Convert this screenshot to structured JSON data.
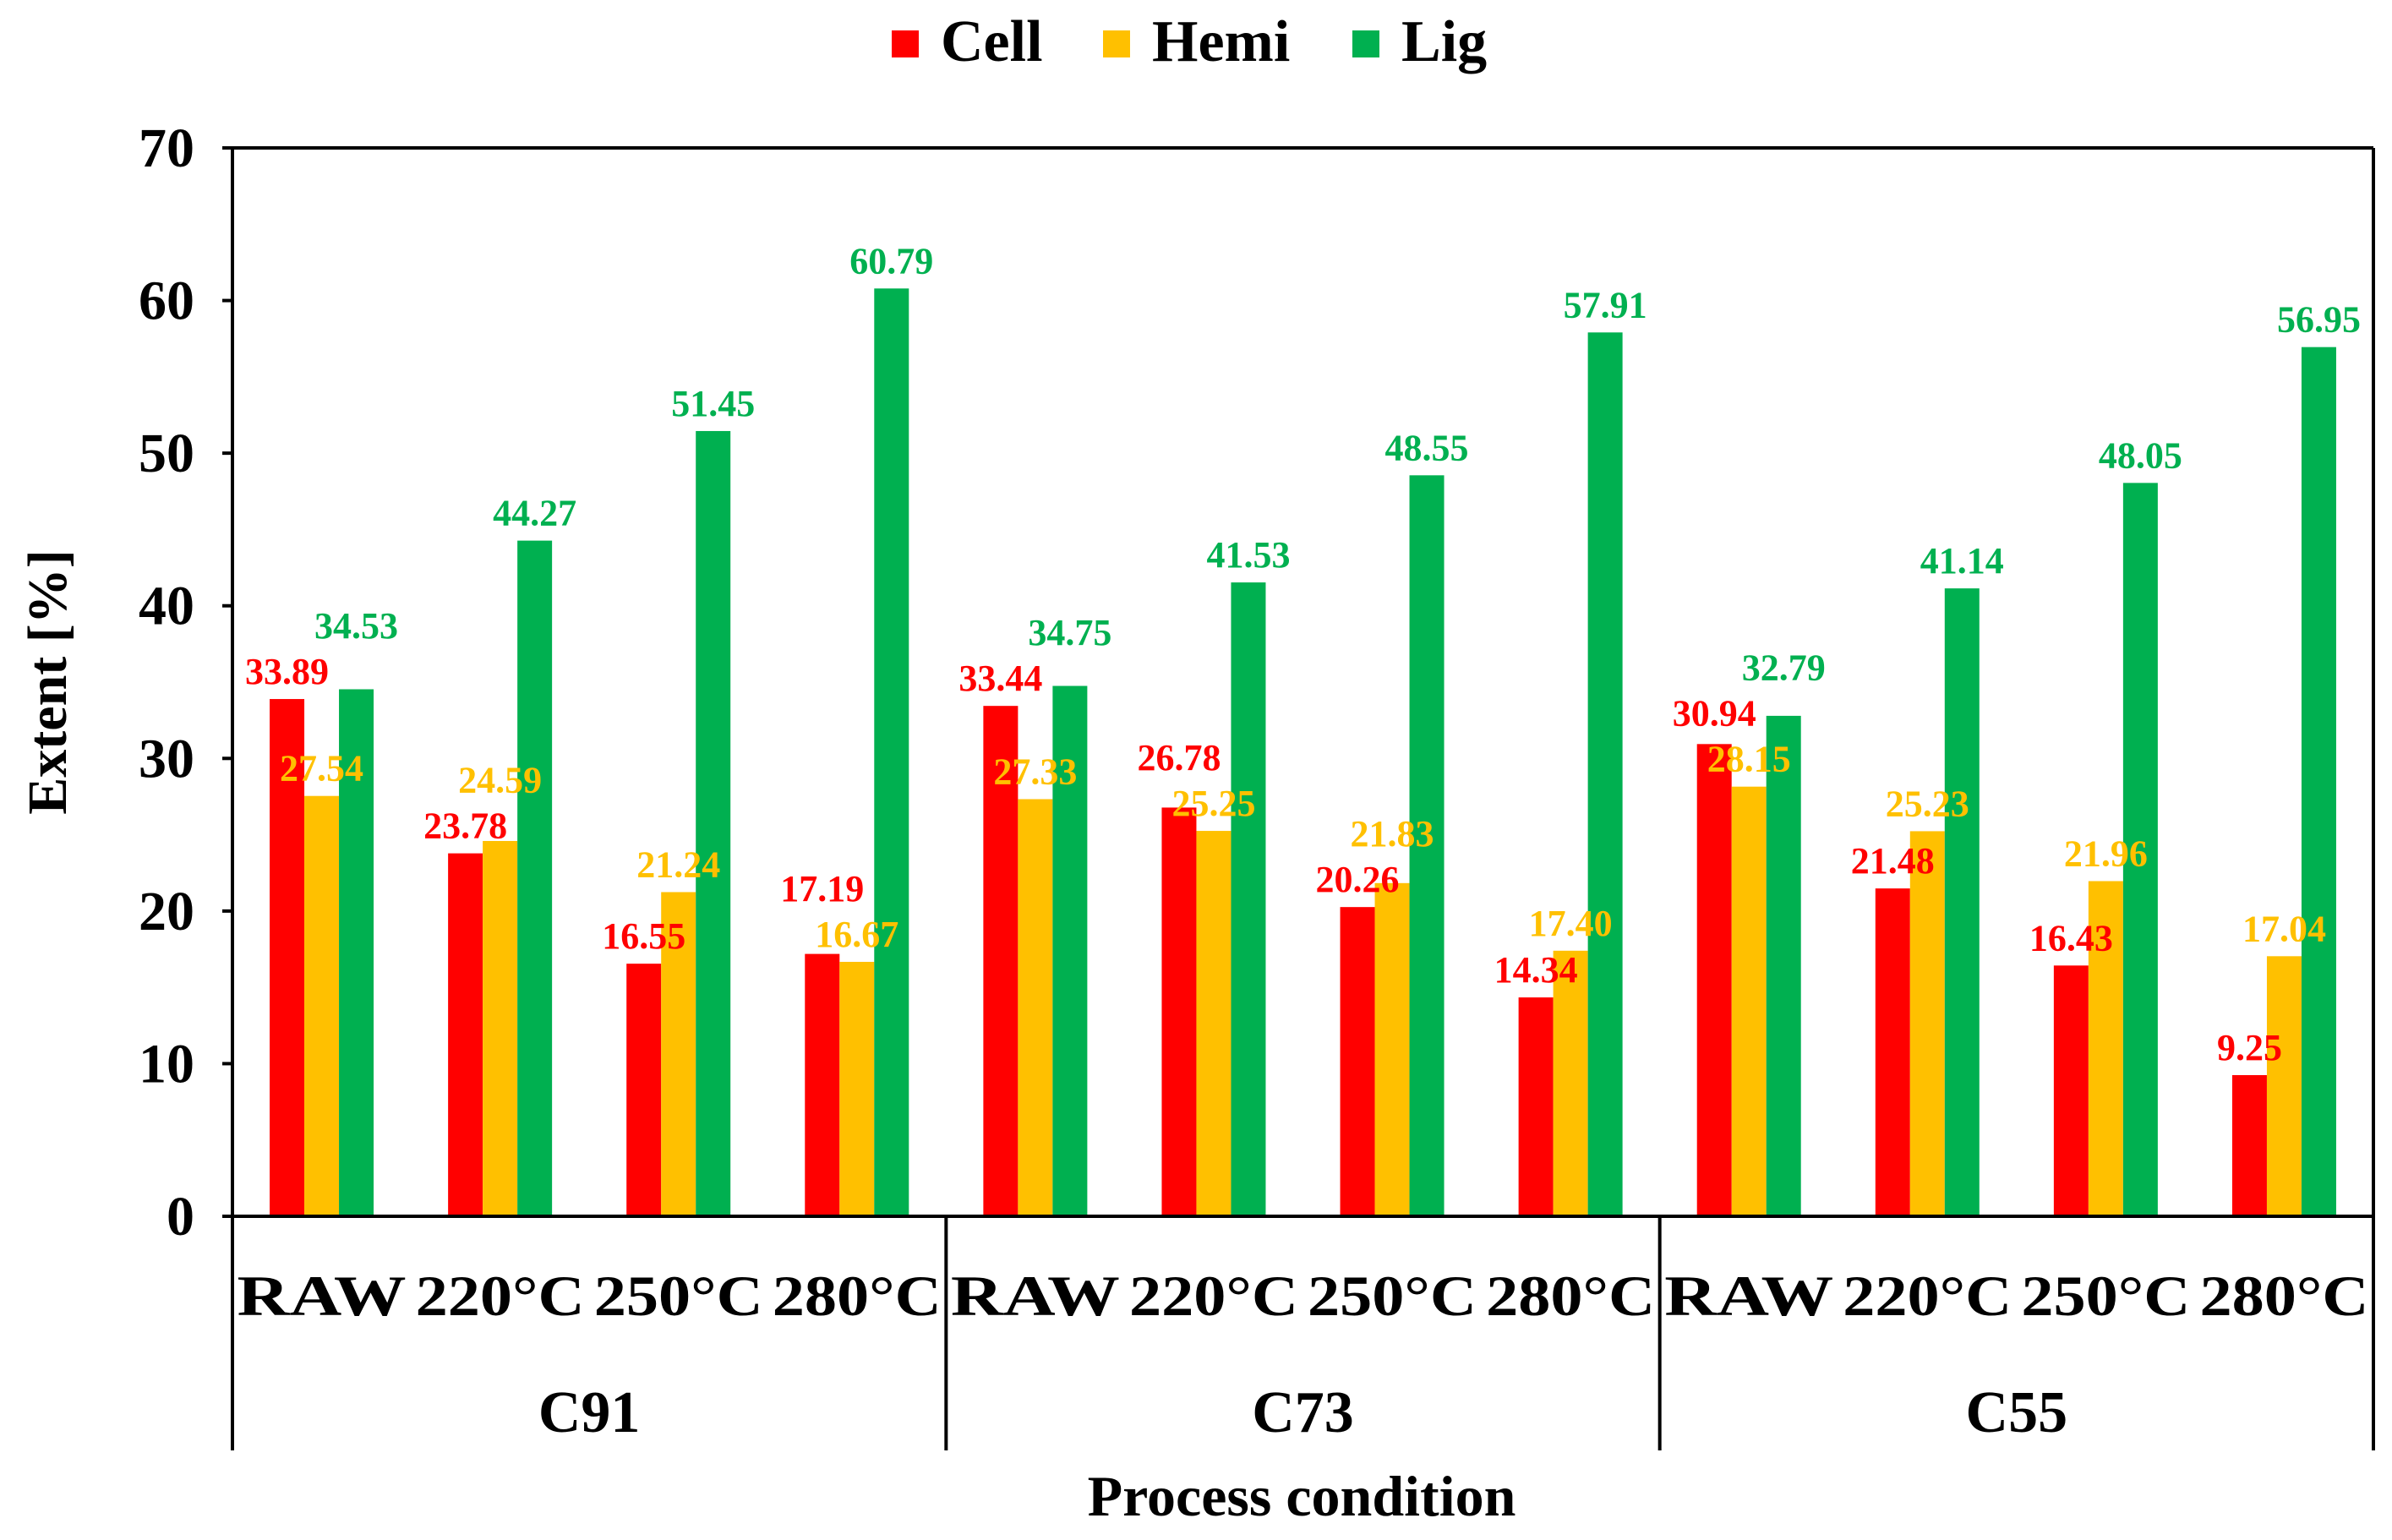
{
  "chart_data": {
    "type": "bar",
    "title": "",
    "xlabel": "Process condition",
    "ylabel": "Extent [%]",
    "ylim": [
      0,
      70
    ],
    "yticks": [
      0,
      10,
      20,
      30,
      40,
      50,
      60,
      70
    ],
    "grid": false,
    "legend_placement": "top-center",
    "groups": [
      "C91",
      "C73",
      "C55"
    ],
    "conditions": [
      "RAW",
      "220°C",
      "250°C",
      "280°C"
    ],
    "categories": [
      "C91 RAW",
      "C91 220°C",
      "C91 250°C",
      "C91 280°C",
      "C73 RAW",
      "C73 220°C",
      "C73 250°C",
      "C73 280°C",
      "C55 RAW",
      "C55 220°C",
      "C55 250°C",
      "C55 280°C"
    ],
    "series": [
      {
        "name": "Cell",
        "color": "#ff0000",
        "label_color": "#ff0000",
        "values": [
          33.89,
          23.78,
          16.55,
          17.19,
          33.44,
          26.78,
          20.26,
          14.34,
          30.94,
          21.48,
          16.43,
          9.25
        ]
      },
      {
        "name": "Hemi",
        "color": "#ffc000",
        "label_color": "#ffc000",
        "values": [
          27.54,
          24.59,
          21.24,
          16.67,
          27.33,
          25.25,
          21.83,
          17.4,
          28.15,
          25.23,
          21.96,
          17.04
        ]
      },
      {
        "name": "Lig",
        "color": "#00b050",
        "label_color": "#00b050",
        "values": [
          34.53,
          44.27,
          51.45,
          60.79,
          34.75,
          41.53,
          48.55,
          57.91,
          32.79,
          41.14,
          48.05,
          56.95
        ]
      }
    ]
  }
}
